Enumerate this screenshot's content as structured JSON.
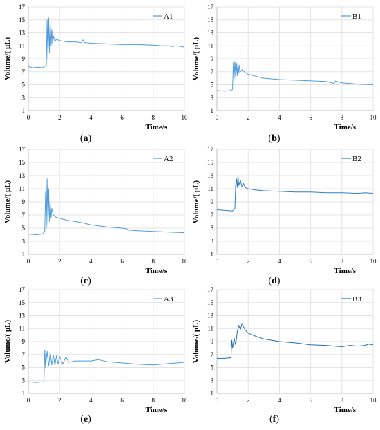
{
  "chart_data": [
    {
      "id": "a",
      "type": "line",
      "caption": "a",
      "xlabel": "Time/s",
      "ylabel": "Volume/( μL)",
      "xlim": [
        0,
        10
      ],
      "ylim": [
        1,
        17
      ],
      "xticks": [
        "0",
        "2",
        "4",
        "6",
        "8",
        "10"
      ],
      "yticks": [
        "1",
        "3",
        "5",
        "7",
        "9",
        "11",
        "13",
        "15",
        "17"
      ],
      "grid": true,
      "legend_position": "top-right",
      "series": [
        {
          "name": "A1",
          "color": "#4f9bd9",
          "x": [
            0,
            0.3,
            0.6,
            0.9,
            1.15,
            1.2,
            1.25,
            1.3,
            1.35,
            1.4,
            1.45,
            1.5,
            1.55,
            1.6,
            1.7,
            1.8,
            2.0,
            2.5,
            3.0,
            3.4,
            3.5,
            3.6,
            4.0,
            5.0,
            6.0,
            7.0,
            8.0,
            8.5,
            9.0,
            9.2,
            9.5,
            10.0
          ],
          "y": [
            7.8,
            7.6,
            7.7,
            7.6,
            8.0,
            15.0,
            9.0,
            15.3,
            10.0,
            14.6,
            11.0,
            13.5,
            11.3,
            12.5,
            11.7,
            12.0,
            11.8,
            11.6,
            11.6,
            11.5,
            11.9,
            11.5,
            11.4,
            11.3,
            11.2,
            11.2,
            11.1,
            11.0,
            11.0,
            10.9,
            11.0,
            10.8
          ]
        }
      ]
    },
    {
      "id": "b",
      "type": "line",
      "caption": "b",
      "xlabel": "Time/s",
      "ylabel": "Volume/( μL)",
      "xlim": [
        0,
        10
      ],
      "ylim": [
        1,
        17
      ],
      "xticks": [
        "0",
        "2",
        "4",
        "6",
        "8",
        "10"
      ],
      "yticks": [
        "1",
        "3",
        "5",
        "7",
        "9",
        "11",
        "13",
        "15",
        "17"
      ],
      "grid": true,
      "legend_position": "top-right",
      "series": [
        {
          "name": "B1",
          "color": "#4f9bd9",
          "x": [
            0,
            0.5,
            0.9,
            1.0,
            1.05,
            1.1,
            1.15,
            1.2,
            1.25,
            1.3,
            1.35,
            1.4,
            1.45,
            1.5,
            1.6,
            1.8,
            2.0,
            2.5,
            3.0,
            4.0,
            5.0,
            6.0,
            7.0,
            7.5,
            7.6,
            7.8,
            8.0,
            9.0,
            10.0
          ],
          "y": [
            4.1,
            4.0,
            4.1,
            4.3,
            8.4,
            6.0,
            8.6,
            6.2,
            8.3,
            6.4,
            8.5,
            6.8,
            8.0,
            7.0,
            7.3,
            6.9,
            6.6,
            6.3,
            6.0,
            5.8,
            5.7,
            5.6,
            5.5,
            5.2,
            5.6,
            5.4,
            5.3,
            5.1,
            5.0
          ]
        }
      ]
    },
    {
      "id": "c",
      "type": "line",
      "caption": "c",
      "xlabel": "Time/s",
      "ylabel": "Volume/( μL)",
      "xlim": [
        0,
        10
      ],
      "ylim": [
        1,
        17
      ],
      "xticks": [
        "0",
        "2",
        "4",
        "6",
        "8",
        "10"
      ],
      "yticks": [
        "1",
        "3",
        "5",
        "7",
        "9",
        "11",
        "13",
        "15",
        "17"
      ],
      "grid": true,
      "legend_position": "top-right",
      "series": [
        {
          "name": "A2",
          "color": "#4f9bd9",
          "x": [
            0,
            0.5,
            0.9,
            1.05,
            1.1,
            1.15,
            1.2,
            1.25,
            1.3,
            1.35,
            1.4,
            1.45,
            1.5,
            1.6,
            1.7,
            1.8,
            2.0,
            2.5,
            3.0,
            3.5,
            4.0,
            5.0,
            6.0,
            6.3,
            6.4,
            7.0,
            8.0,
            9.0,
            10.0
          ],
          "y": [
            4.1,
            4.0,
            4.1,
            4.5,
            10.5,
            5.0,
            12.5,
            5.5,
            11.0,
            6.0,
            9.0,
            6.5,
            8.0,
            7.0,
            6.8,
            6.6,
            6.5,
            6.2,
            6.0,
            5.8,
            5.5,
            5.2,
            5.0,
            4.9,
            4.7,
            4.6,
            4.5,
            4.4,
            4.3
          ]
        }
      ]
    },
    {
      "id": "d",
      "type": "line",
      "caption": "d",
      "xlabel": "Time/s",
      "ylabel": "Volume/( μL)",
      "xlim": [
        0,
        10
      ],
      "ylim": [
        1,
        17
      ],
      "xticks": [
        "0",
        "2",
        "4",
        "6",
        "8",
        "10"
      ],
      "yticks": [
        "1",
        "3",
        "5",
        "7",
        "9",
        "11",
        "13",
        "15",
        "17"
      ],
      "grid": true,
      "legend_position": "top-right",
      "series": [
        {
          "name": "B2",
          "color": "#2e7fc4",
          "x": [
            0,
            0.5,
            1.0,
            1.15,
            1.2,
            1.25,
            1.3,
            1.35,
            1.4,
            1.5,
            1.6,
            1.7,
            1.8,
            2.0,
            2.5,
            3.0,
            4.0,
            5.0,
            6.0,
            7.0,
            8.0,
            9.0,
            9.5,
            10.0
          ],
          "y": [
            7.8,
            7.7,
            7.6,
            8.0,
            11.5,
            12.5,
            11.2,
            13.0,
            11.5,
            12.3,
            11.3,
            11.8,
            11.2,
            11.0,
            10.8,
            10.7,
            10.6,
            10.5,
            10.5,
            10.4,
            10.4,
            10.3,
            10.4,
            10.3
          ]
        }
      ]
    },
    {
      "id": "e",
      "type": "line",
      "caption": "e",
      "xlabel": "Time/s",
      "ylabel": "Volume/( μL)",
      "xlim": [
        0,
        10
      ],
      "ylim": [
        1,
        17
      ],
      "xticks": [
        "0",
        "2",
        "4",
        "6",
        "8",
        "10"
      ],
      "yticks": [
        "1",
        "3",
        "5",
        "7",
        "9",
        "11",
        "13",
        "15",
        "17"
      ],
      "grid": true,
      "legend_position": "top-right",
      "series": [
        {
          "name": "A3",
          "color": "#4f9bd9",
          "x": [
            0,
            0.5,
            1.0,
            1.05,
            1.1,
            1.2,
            1.3,
            1.4,
            1.5,
            1.6,
            1.7,
            1.8,
            1.9,
            2.0,
            2.2,
            2.4,
            2.6,
            3.0,
            4.0,
            4.5,
            5.0,
            6.0,
            7.0,
            8.0,
            8.5,
            9.0,
            10.0
          ],
          "y": [
            2.8,
            2.7,
            2.8,
            7.7,
            5.0,
            7.5,
            5.2,
            7.3,
            5.4,
            6.9,
            5.3,
            6.8,
            5.5,
            6.7,
            5.5,
            6.6,
            5.8,
            6.0,
            6.0,
            6.2,
            5.9,
            5.7,
            5.5,
            5.4,
            5.5,
            5.6,
            5.8
          ]
        }
      ]
    },
    {
      "id": "f",
      "type": "line",
      "caption": "f",
      "xlabel": "Time/s",
      "ylabel": "Volume/( μL)",
      "xlim": [
        0,
        10
      ],
      "ylim": [
        1,
        17
      ],
      "xticks": [
        "0",
        "2",
        "4",
        "6",
        "8",
        "10"
      ],
      "yticks": [
        "1",
        "3",
        "5",
        "7",
        "9",
        "11",
        "13",
        "15",
        "17"
      ],
      "grid": true,
      "legend_position": "top-right",
      "series": [
        {
          "name": "B3",
          "color": "#1f6fb5",
          "x": [
            0,
            0.5,
            0.9,
            0.95,
            1.0,
            1.1,
            1.2,
            1.3,
            1.4,
            1.5,
            1.6,
            1.8,
            2.0,
            2.5,
            3.0,
            4.0,
            5.0,
            6.0,
            7.0,
            7.5,
            8.0,
            8.5,
            9.0,
            9.5,
            9.7,
            10.0
          ],
          "y": [
            6.4,
            6.4,
            6.5,
            9.2,
            8.0,
            9.5,
            8.5,
            10.5,
            11.5,
            10.8,
            11.8,
            10.8,
            10.3,
            9.8,
            9.4,
            9.0,
            8.8,
            8.5,
            8.4,
            8.3,
            8.2,
            8.4,
            8.3,
            8.4,
            8.6,
            8.5
          ]
        }
      ]
    }
  ]
}
